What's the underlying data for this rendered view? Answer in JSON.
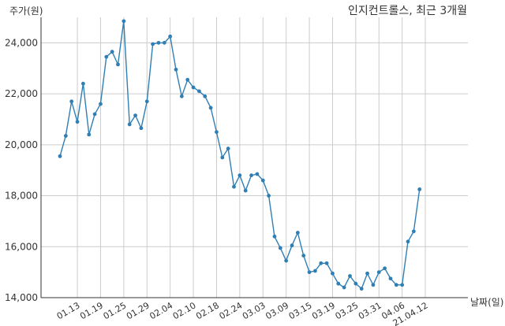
{
  "chart_data": {
    "type": "line",
    "title": "인지컨트롤스, 최근 3개월",
    "ylabel": "주가(원)",
    "xlabel": "날짜(일)",
    "ylim": [
      14000,
      25000
    ],
    "yticks": [
      14000,
      16000,
      18000,
      20000,
      22000,
      24000
    ],
    "ytick_labels": [
      "14,000",
      "16,000",
      "18,000",
      "20,000",
      "22,000",
      "24,000"
    ],
    "xtick_labels": [
      "01.13",
      "01.19",
      "01.25",
      "01.29",
      "02.04",
      "02.10",
      "02.18",
      "02.24",
      "03.03",
      "03.09",
      "03.15",
      "03.19",
      "03.25",
      "03.31",
      "04.06",
      "21.04.12"
    ],
    "xtick_indices": [
      3,
      7,
      11,
      15,
      19,
      23,
      27,
      31,
      35,
      39,
      43,
      47,
      51,
      55,
      59,
      63
    ],
    "grid": true,
    "color": "#2f7fb5",
    "series": [
      {
        "values": [
          19550,
          20350,
          21700,
          20900,
          22400,
          20400,
          21200,
          21600,
          23450,
          23650,
          23150,
          24850,
          20800,
          21150,
          20650,
          21700,
          23950,
          24000,
          24000,
          24250,
          22950,
          21900,
          22550,
          22250,
          22100,
          21900,
          21450,
          20500,
          19500,
          19850,
          18350,
          18800,
          18200,
          18800,
          18850,
          18600,
          18000,
          16400,
          15950,
          15450,
          16050,
          16550,
          15650,
          15000,
          15050,
          15350,
          15350,
          14950,
          14550,
          14400,
          14850,
          14550,
          14350,
          14950,
          14500,
          15000,
          15150,
          14750,
          14500,
          14500,
          16200,
          16600,
          18250
        ]
      }
    ]
  }
}
